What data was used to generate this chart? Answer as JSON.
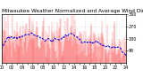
{
  "title": "Milwaukee Weather Normalized and Average Wind Direction (Last 24 Hours)",
  "background_color": "#ffffff",
  "plot_background": "#ffffff",
  "n_points": 288,
  "y_min": 0,
  "y_max": 360,
  "y_ticks": [
    90,
    180,
    270,
    360
  ],
  "y_tick_labels": [
    "90",
    "180",
    "270",
    "360"
  ],
  "bar_color": "#ff0000",
  "line_color": "#0000dd",
  "grid_color": "#bbbbbb",
  "title_fontsize": 4.2,
  "tick_fontsize": 3.5,
  "seed": 77
}
